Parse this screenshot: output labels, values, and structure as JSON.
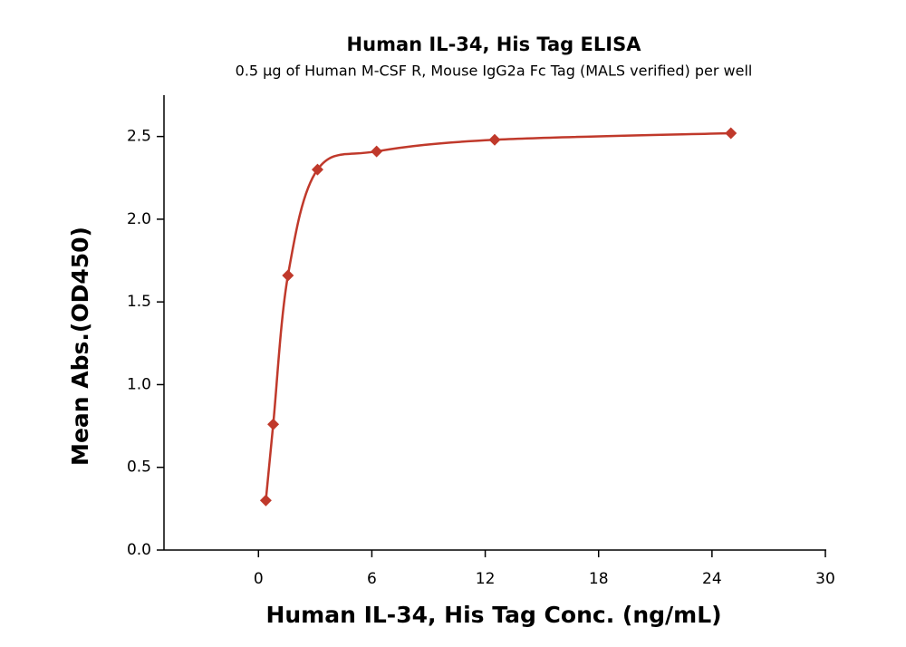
{
  "chart_data": {
    "type": "line",
    "title": "Human IL-34, His Tag ELISA",
    "subtitle": "0.5 µg of Human M-CSF R,  Mouse IgG2a Fc Tag (MALS verified) per well",
    "x_label": "Human IL-34, His Tag Conc. (ng/mL)",
    "y_label": "Mean Abs.(OD450)",
    "x": [
      0.39,
      0.78,
      1.56,
      3.125,
      6.25,
      12.5,
      25
    ],
    "series": [
      {
        "color": "#c0392b",
        "values": [
          0.3,
          0.76,
          1.66,
          2.3,
          2.41,
          2.48,
          2.52
        ]
      }
    ],
    "xlim": [
      -5,
      30
    ],
    "xticks": [
      0,
      6,
      12,
      18,
      24,
      30
    ],
    "ylim": [
      0,
      2.75
    ],
    "yticks": [
      {
        "value": 0,
        "label": "0.0"
      },
      0.5,
      {
        "value": 1,
        "label": "1.0"
      },
      1.5,
      {
        "value": 2,
        "label": "2.0"
      },
      2.5
    ]
  }
}
